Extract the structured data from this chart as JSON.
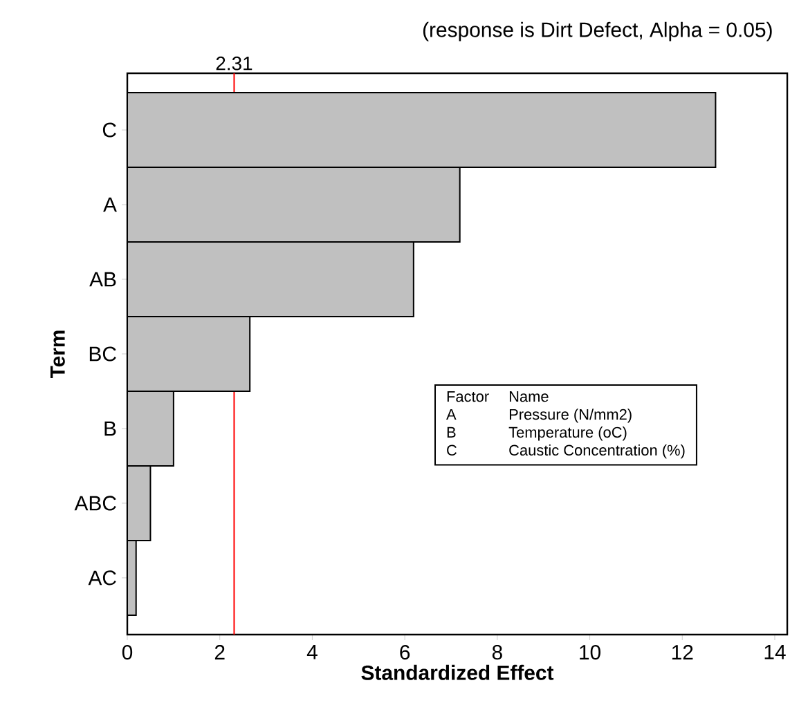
{
  "chart_data": {
    "type": "bar",
    "orientation": "horizontal",
    "title": "(response is Dirt Defect, Alpha = 0.05)",
    "xlabel": "Standardized Effect",
    "ylabel": "Term",
    "categories": [
      "C",
      "A",
      "AB",
      "BC",
      "B",
      "ABC",
      "AC"
    ],
    "values": [
      12.72,
      7.19,
      6.19,
      2.65,
      1.0,
      0.5,
      0.19
    ],
    "color": "#c0c0c0",
    "xlim": [
      0,
      14.27
    ],
    "xticks": [
      0,
      2,
      4,
      6,
      8,
      10,
      12,
      14
    ],
    "ref_lines": [
      {
        "axis": "x",
        "value": 2.31,
        "label": "2.31",
        "color": "#ff0000"
      }
    ],
    "annotations": [
      "Factor",
      "Name",
      "A",
      "Pressure (N/mm2)",
      "B",
      "Temperature (oC)",
      "C",
      "Caustic Concentration (%)"
    ]
  }
}
